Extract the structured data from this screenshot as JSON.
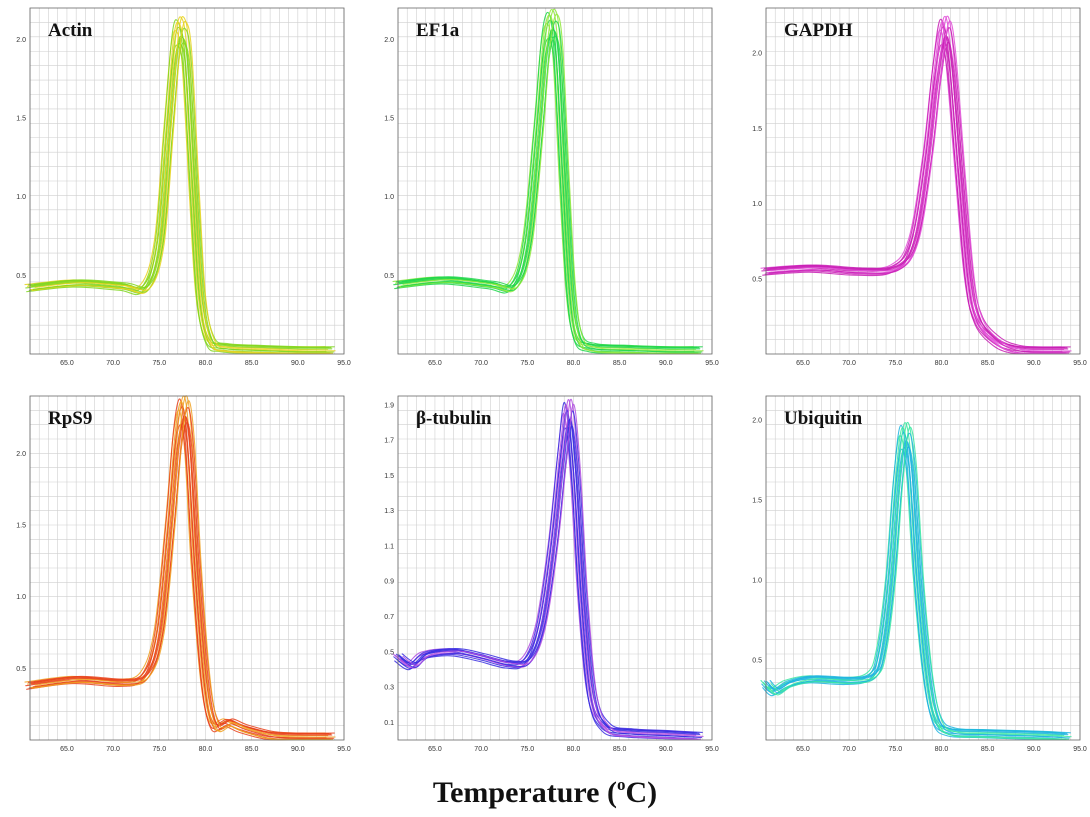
{
  "figure": {
    "xlabel_main": "Temperature (",
    "xlabel_sup": "o",
    "xlabel_end": "C)"
  },
  "chart_data": [
    {
      "type": "line",
      "title": "Actin",
      "color_a": "#7fd61e",
      "color_b": "#e8d21c",
      "xlim": [
        61,
        95
      ],
      "ylim": [
        0,
        2.2
      ],
      "xticks": [
        "65.0",
        "70.0",
        "75.0",
        "80.0",
        "85.0",
        "90.0",
        "95.0"
      ],
      "yticks": [
        "0.5",
        "1.0",
        "1.5",
        "2.0"
      ],
      "series": [
        {
          "x": [
            61,
            66,
            71,
            73.5,
            75,
            76,
            76.8,
            77.4,
            78,
            78.8,
            79.5,
            80.5,
            82,
            85,
            90,
            93.5
          ],
          "y": [
            0.42,
            0.45,
            0.43,
            0.42,
            0.7,
            1.4,
            1.95,
            2.05,
            1.85,
            1.0,
            0.35,
            0.08,
            0.04,
            0.03,
            0.02,
            0.02
          ]
        }
      ]
    },
    {
      "type": "line",
      "title": "EF1a",
      "color_a": "#1fd64a",
      "color_b": "#8fe83a",
      "xlim": [
        61,
        95
      ],
      "ylim": [
        0,
        2.2
      ],
      "xticks": [
        "65.0",
        "70.0",
        "75.0",
        "80.0",
        "85.0",
        "90.0",
        "95.0"
      ],
      "yticks": [
        "0.5",
        "1.0",
        "1.5",
        "2.0"
      ],
      "series": [
        {
          "x": [
            61,
            66,
            71,
            73.5,
            75,
            76.2,
            77,
            77.7,
            78.3,
            79,
            79.7,
            80.5,
            82,
            85,
            90,
            93.5
          ],
          "y": [
            0.44,
            0.47,
            0.44,
            0.43,
            0.7,
            1.4,
            1.95,
            2.1,
            1.9,
            1.1,
            0.4,
            0.1,
            0.04,
            0.03,
            0.02,
            0.02
          ]
        }
      ]
    },
    {
      "type": "line",
      "title": "GAPDH",
      "color_a": "#c81fb4",
      "color_b": "#e24fd8",
      "xlim": [
        61,
        95
      ],
      "ylim": [
        0,
        2.3
      ],
      "xticks": [
        "65.0",
        "70.0",
        "75.0",
        "80.0",
        "85.0",
        "90.0",
        "95.0"
      ],
      "yticks": [
        "0.5",
        "1.0",
        "1.5",
        "2.0"
      ],
      "series": [
        {
          "x": [
            61,
            66,
            71,
            75,
            77,
            78.5,
            79.5,
            80.3,
            81,
            82,
            83,
            84,
            86,
            88,
            90,
            93.5
          ],
          "y": [
            0.55,
            0.57,
            0.55,
            0.57,
            0.75,
            1.3,
            1.85,
            2.15,
            1.95,
            1.2,
            0.5,
            0.22,
            0.08,
            0.03,
            0.02,
            0.02
          ]
        }
      ]
    },
    {
      "type": "line",
      "title": "RpS9",
      "color_a": "#e8421c",
      "color_b": "#f0a01e",
      "xlim": [
        61,
        95
      ],
      "ylim": [
        0,
        2.4
      ],
      "xticks": [
        "65.0",
        "70.0",
        "75.0",
        "80.0",
        "85.0",
        "90.0",
        "95.0"
      ],
      "yticks": [
        "0.5",
        "1.0",
        "1.5",
        "2.0"
      ],
      "series": [
        {
          "x": [
            61,
            66,
            71,
            73.5,
            75,
            76.2,
            77,
            77.7,
            78.3,
            79,
            80,
            81,
            82.5,
            84,
            87,
            90,
            93.5
          ],
          "y": [
            0.38,
            0.42,
            0.4,
            0.45,
            0.75,
            1.5,
            2.1,
            2.3,
            2.0,
            1.2,
            0.4,
            0.1,
            0.12,
            0.08,
            0.03,
            0.02,
            0.02
          ]
        }
      ]
    },
    {
      "type": "line",
      "title": "β-tubulin",
      "color_a": "#3a2ee0",
      "color_b": "#b24fe0",
      "xlim": [
        61,
        95
      ],
      "ylim": [
        0,
        1.95
      ],
      "xticks": [
        "65.0",
        "70.0",
        "75.0",
        "80.0",
        "85.0",
        "90.0",
        "95.0"
      ],
      "yticks": [
        "0.1",
        "0.3",
        "0.5",
        "0.7",
        "0.9",
        "1.1",
        "1.3",
        "1.5",
        "1.7",
        "1.9"
      ],
      "series": [
        {
          "x": [
            61,
            62.5,
            64,
            67,
            70,
            73,
            75,
            76.5,
            77.8,
            78.8,
            79.5,
            80.2,
            81,
            82,
            83.5,
            86,
            90,
            93.5
          ],
          "y": [
            0.47,
            0.42,
            0.48,
            0.5,
            0.47,
            0.43,
            0.45,
            0.65,
            1.1,
            1.6,
            1.85,
            1.5,
            0.8,
            0.25,
            0.07,
            0.04,
            0.03,
            0.02
          ]
        }
      ]
    },
    {
      "type": "line",
      "title": "Ubiquitin",
      "color_a": "#1fb4e0",
      "color_b": "#3ae8a0",
      "xlim": [
        61,
        95
      ],
      "ylim": [
        0,
        2.15
      ],
      "xticks": [
        "65.0",
        "70.0",
        "75.0",
        "80.0",
        "85.0",
        "90.0",
        "95.0"
      ],
      "yticks": [
        "0.5",
        "1.0",
        "1.5",
        "2.0"
      ],
      "series": [
        {
          "x": [
            61,
            62,
            63.5,
            66,
            70,
            72.5,
            73.5,
            74.5,
            75.3,
            76,
            76.7,
            77.5,
            78.5,
            79.5,
            81,
            84,
            90,
            93.5
          ],
          "y": [
            0.35,
            0.3,
            0.35,
            0.38,
            0.37,
            0.4,
            0.55,
            1.0,
            1.6,
            1.9,
            1.7,
            1.0,
            0.4,
            0.12,
            0.05,
            0.04,
            0.03,
            0.02
          ]
        }
      ]
    }
  ]
}
